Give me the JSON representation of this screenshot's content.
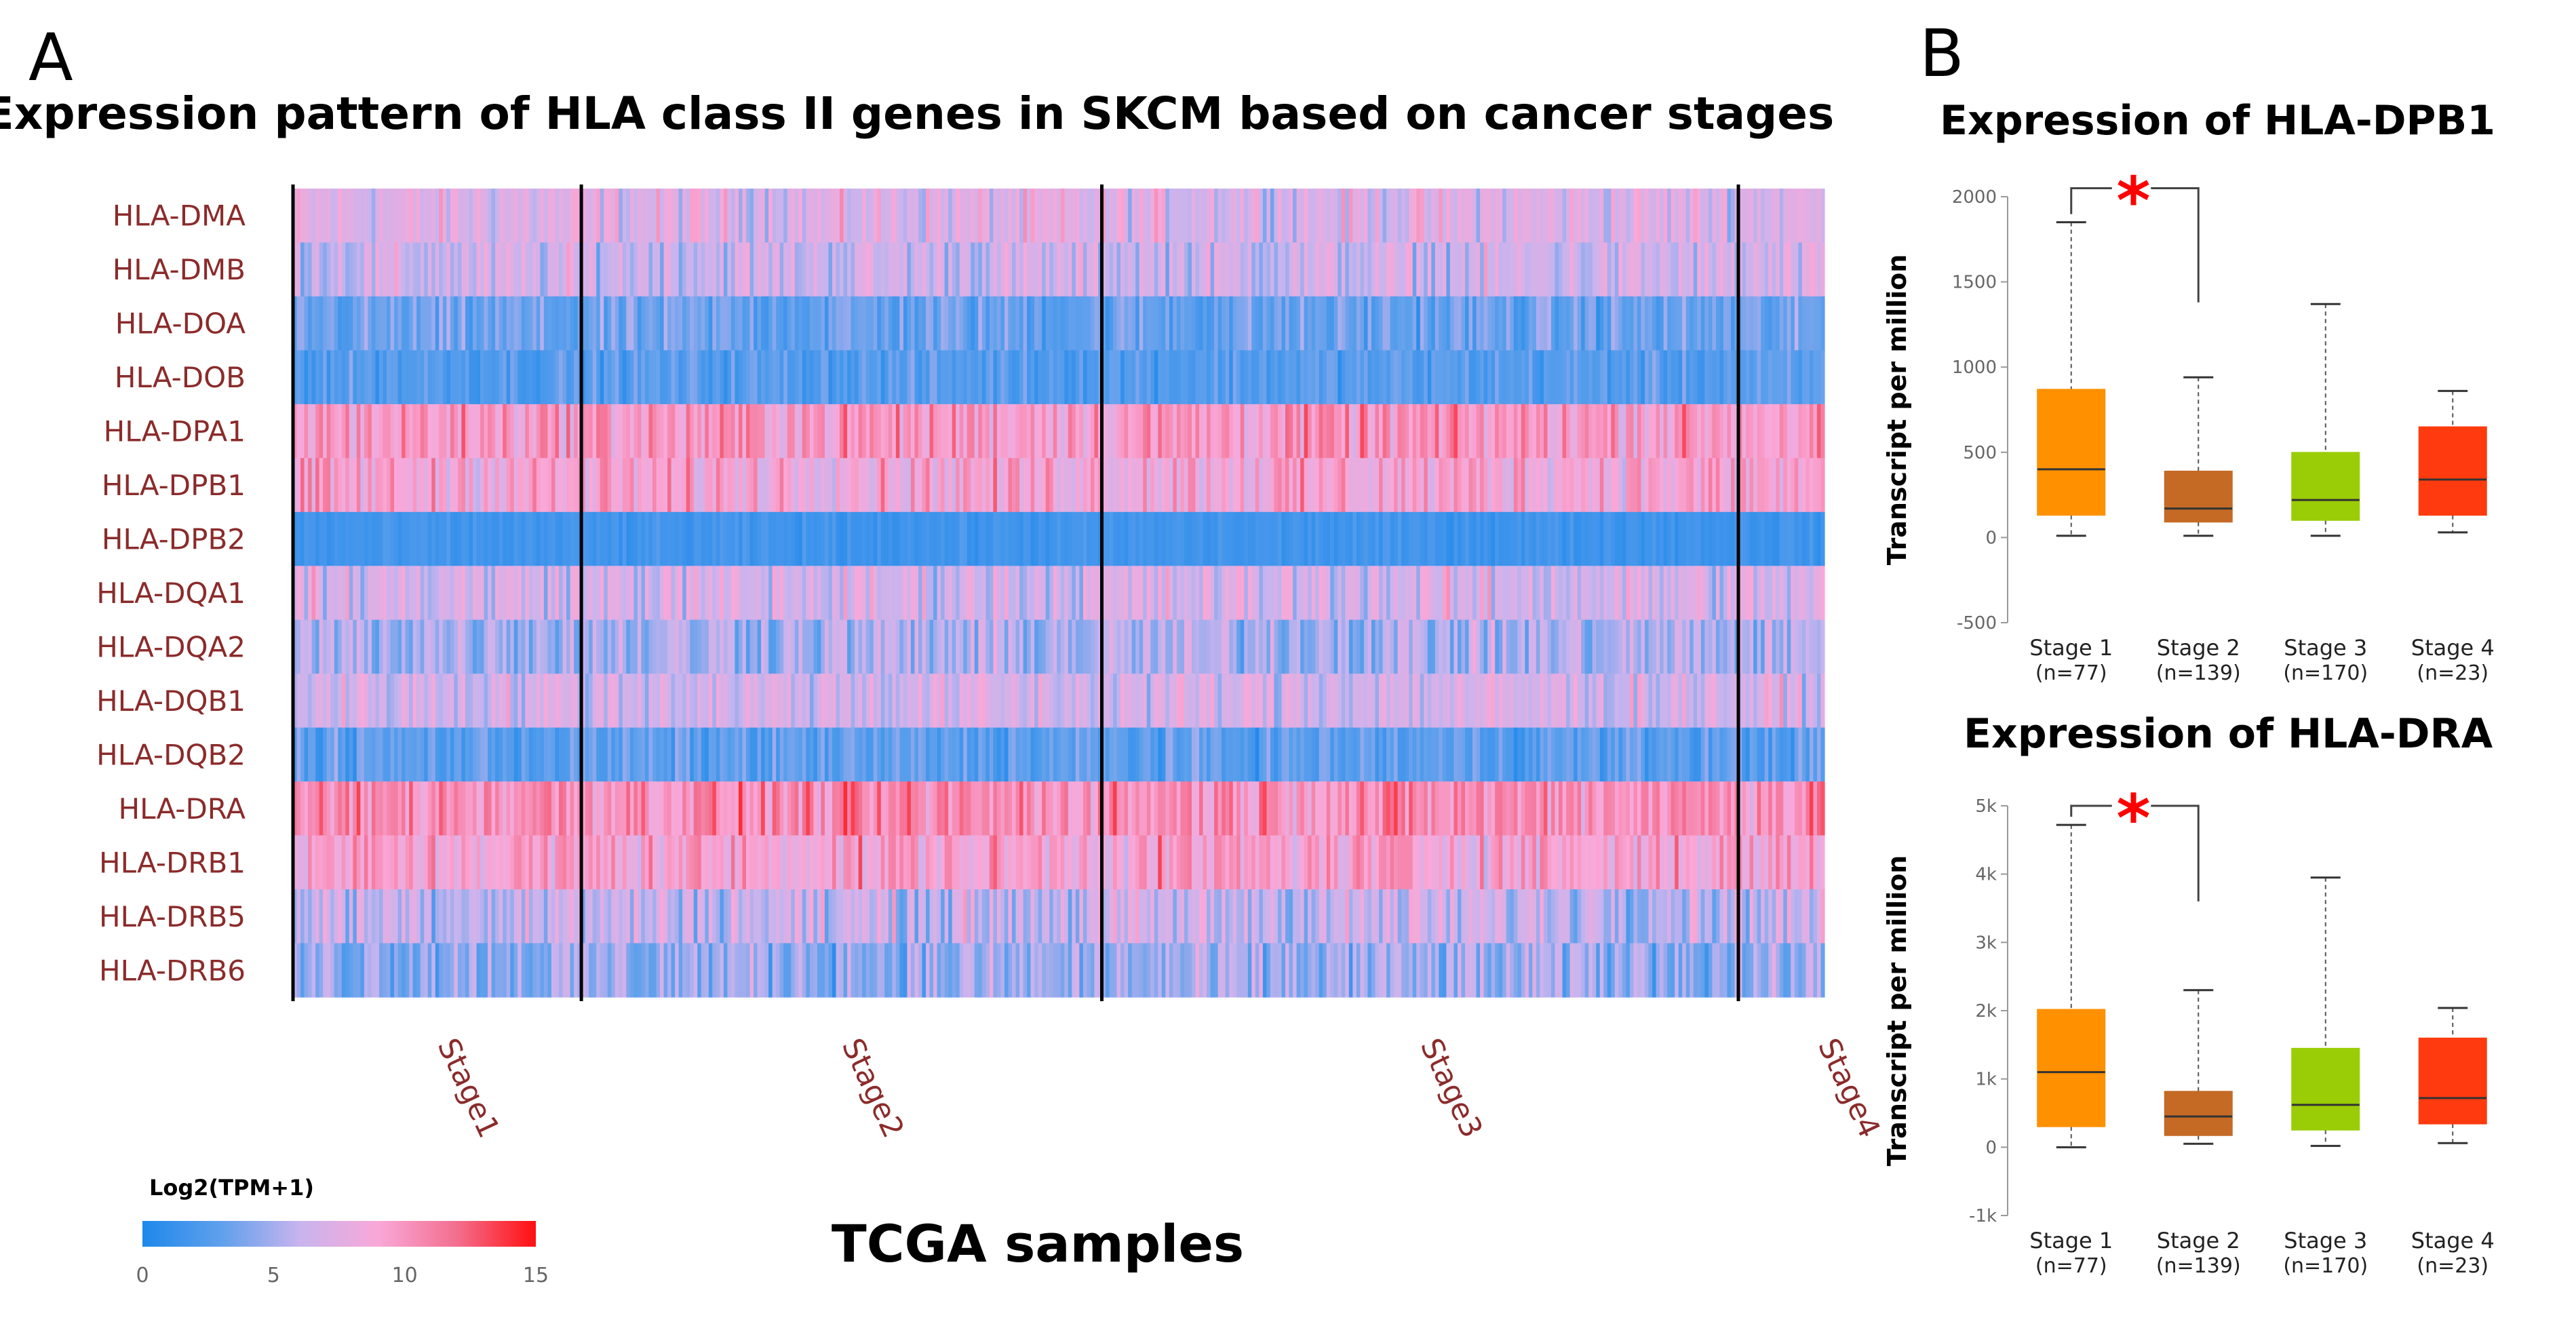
{
  "panel_a": {
    "letter": "A",
    "title": "Expression pattern of HLA class II genes in SKCM based on cancer stages",
    "xlabel": "TCGA samples"
  },
  "panel_b": {
    "letter": "B"
  },
  "chart_data": [
    {
      "type": "heatmap",
      "title": "Expression pattern of HLA class II genes in SKCM based on cancer stages",
      "xlabel": "TCGA samples",
      "genes": [
        "HLA-DMA",
        "HLA-DMB",
        "HLA-DOA",
        "HLA-DOB",
        "HLA-DPA1",
        "HLA-DPB1",
        "HLA-DPB2",
        "HLA-DQA1",
        "HLA-DQA2",
        "HLA-DQB1",
        "HLA-DQB2",
        "HLA-DRA",
        "HLA-DRB1",
        "HLA-DRB5",
        "HLA-DRB6"
      ],
      "stages": [
        {
          "name": "Stage1",
          "n": 77
        },
        {
          "name": "Stage2",
          "n": 139
        },
        {
          "name": "Stage3",
          "n": 170
        },
        {
          "name": "Stage4",
          "n": 23
        }
      ],
      "gene_mean_log2tpm": [
        7.2,
        6.4,
        3.2,
        2.6,
        9.8,
        9.0,
        1.6,
        6.8,
        5.2,
        6.8,
        2.8,
        10.4,
        9.2,
        6.2,
        4.6
      ],
      "gene_spread": [
        2.0,
        2.0,
        1.6,
        1.2,
        2.2,
        2.2,
        0.6,
        2.2,
        2.2,
        2.0,
        1.4,
        2.2,
        2.2,
        2.4,
        2.2
      ],
      "colorbar": {
        "label": "Log2(TPM+1)",
        "ticks": [
          0,
          5,
          10,
          15
        ],
        "range": [
          0,
          15
        ],
        "colors": [
          "#1E88EB",
          "#5FA0EC",
          "#C8B4EE",
          "#F9A8D8",
          "#F36E8E",
          "#FF1010"
        ]
      }
    },
    {
      "type": "box",
      "title": "Expression of HLA-DPB1",
      "ylabel": "Transcript  per million",
      "ylim": [
        -500,
        2000
      ],
      "yticks": [
        -500,
        0,
        500,
        1000,
        1500,
        2000
      ],
      "ytick_labels": [
        "-500",
        "0",
        "500",
        "1000",
        "1500",
        "2000"
      ],
      "categories": [
        "Stage 1",
        "Stage 2",
        "Stage 3",
        "Stage 4"
      ],
      "sublabels": [
        "(n=77)",
        "(n=139)",
        "(n=170)",
        "(n=23)"
      ],
      "boxes": [
        {
          "min": 10,
          "q1": 130,
          "median": 400,
          "q3": 870,
          "max": 1850,
          "color": "#FF9000"
        },
        {
          "min": 10,
          "q1": 90,
          "median": 170,
          "q3": 390,
          "max": 940,
          "color": "#C46A25"
        },
        {
          "min": 10,
          "q1": 100,
          "median": 220,
          "q3": 500,
          "max": 1370,
          "color": "#9ACD05"
        },
        {
          "min": 30,
          "q1": 130,
          "median": 340,
          "q3": 650,
          "max": 860,
          "color": "#FF3A0E"
        }
      ],
      "significance": {
        "from": 0,
        "to": 1,
        "mark": "*",
        "y": 2050,
        "drop_to": 1380
      }
    },
    {
      "type": "box",
      "title": "Expression of HLA-DRA",
      "ylabel": "Transcript  per million",
      "ylim": [
        -1000,
        5000
      ],
      "yticks": [
        -1000,
        0,
        1000,
        2000,
        3000,
        4000,
        5000
      ],
      "ytick_labels": [
        "-1k",
        "0",
        "1k",
        "2k",
        "3k",
        "4k",
        "5k"
      ],
      "categories": [
        "Stage 1",
        "Stage 2",
        "Stage 3",
        "Stage 4"
      ],
      "sublabels": [
        "(n=77)",
        "(n=139)",
        "(n=170)",
        "(n=23)"
      ],
      "boxes": [
        {
          "min": 0,
          "q1": 300,
          "median": 1100,
          "q3": 2020,
          "max": 4720,
          "color": "#FF9000"
        },
        {
          "min": 50,
          "q1": 170,
          "median": 450,
          "q3": 820,
          "max": 2300,
          "color": "#C46A25"
        },
        {
          "min": 20,
          "q1": 250,
          "median": 620,
          "q3": 1450,
          "max": 3950,
          "color": "#9ACD05"
        },
        {
          "min": 60,
          "q1": 340,
          "median": 720,
          "q3": 1600,
          "max": 2040,
          "color": "#FF3A0E"
        }
      ],
      "significance": {
        "from": 0,
        "to": 1,
        "mark": "*",
        "y": 5000,
        "drop_to": 3600
      }
    }
  ]
}
